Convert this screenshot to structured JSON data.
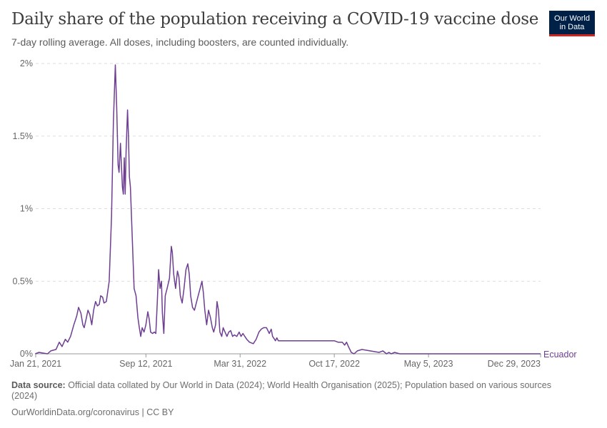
{
  "header": {
    "title": "Daily share of the population receiving a COVID-19 vaccine dose",
    "subtitle": "7-day rolling average. All doses, including boosters, are counted individually.",
    "logo_line1": "Our World",
    "logo_line2": "in Data"
  },
  "footer": {
    "source_label": "Data source:",
    "source_text": "Official data collated by Our World in Data (2024); World Health Organisation (2025); Population based on various sources (2024)",
    "url_text": "OurWorldinData.org/coronavirus | CC BY"
  },
  "colors": {
    "series": "#6d3e91",
    "grid": "#dddddd",
    "axis": "#999999",
    "text": "#666666"
  },
  "chart_data": {
    "type": "line",
    "title": "Daily share of the population receiving a COVID-19 vaccine dose",
    "subtitle": "7-day rolling average. All doses, including boosters, are counted individually.",
    "xlabel": "",
    "ylabel": "",
    "x_range": [
      "2021-01-21",
      "2023-12-29"
    ],
    "ylim": [
      0,
      2
    ],
    "y_ticks": [
      0,
      0.5,
      1,
      1.5,
      2
    ],
    "y_tick_labels": [
      "0%",
      "0.5%",
      "1%",
      "1.5%",
      "2%"
    ],
    "x_ticks": [
      "2021-01-21",
      "2021-09-12",
      "2022-03-31",
      "2022-10-17",
      "2023-05-05",
      "2023-12-29"
    ],
    "x_tick_labels": [
      "Jan 21, 2021",
      "Sep 12, 2021",
      "Mar 31, 2022",
      "Oct 17, 2022",
      "May 5, 2023",
      "Dec 29, 2023"
    ],
    "grid": "horizontal dashed",
    "legend": "end-of-line label",
    "series": [
      {
        "name": "Ecuador",
        "points": [
          [
            "2021-01-20",
            0.0
          ],
          [
            "2021-01-28",
            0.01
          ],
          [
            "2021-02-15",
            0.0
          ],
          [
            "2021-02-22",
            0.02
          ],
          [
            "2021-03-05",
            0.03
          ],
          [
            "2021-03-12",
            0.08
          ],
          [
            "2021-03-18",
            0.05
          ],
          [
            "2021-03-25",
            0.1
          ],
          [
            "2021-03-30",
            0.08
          ],
          [
            "2021-04-05",
            0.12
          ],
          [
            "2021-04-12",
            0.2
          ],
          [
            "2021-04-18",
            0.26
          ],
          [
            "2021-04-22",
            0.32
          ],
          [
            "2021-04-27",
            0.28
          ],
          [
            "2021-05-01",
            0.2
          ],
          [
            "2021-05-04",
            0.18
          ],
          [
            "2021-05-08",
            0.24
          ],
          [
            "2021-05-12",
            0.3
          ],
          [
            "2021-05-16",
            0.27
          ],
          [
            "2021-05-20",
            0.2
          ],
          [
            "2021-05-24",
            0.3
          ],
          [
            "2021-05-28",
            0.36
          ],
          [
            "2021-06-01",
            0.33
          ],
          [
            "2021-06-05",
            0.34
          ],
          [
            "2021-06-08",
            0.4
          ],
          [
            "2021-06-12",
            0.39
          ],
          [
            "2021-06-15",
            0.35
          ],
          [
            "2021-06-20",
            0.36
          ],
          [
            "2021-06-26",
            0.5
          ],
          [
            "2021-07-01",
            0.95
          ],
          [
            "2021-07-05",
            1.6
          ],
          [
            "2021-07-09",
            1.99
          ],
          [
            "2021-07-12",
            1.7
          ],
          [
            "2021-07-15",
            1.3
          ],
          [
            "2021-07-17",
            1.25
          ],
          [
            "2021-07-20",
            1.45
          ],
          [
            "2021-07-22",
            1.3
          ],
          [
            "2021-07-24",
            1.15
          ],
          [
            "2021-07-26",
            1.1
          ],
          [
            "2021-07-28",
            1.35
          ],
          [
            "2021-07-30",
            1.1
          ],
          [
            "2021-08-01",
            1.4
          ],
          [
            "2021-08-04",
            1.68
          ],
          [
            "2021-08-06",
            1.5
          ],
          [
            "2021-08-08",
            1.22
          ],
          [
            "2021-08-10",
            1.15
          ],
          [
            "2021-08-14",
            0.8
          ],
          [
            "2021-08-18",
            0.45
          ],
          [
            "2021-08-22",
            0.4
          ],
          [
            "2021-08-26",
            0.25
          ],
          [
            "2021-08-29",
            0.18
          ],
          [
            "2021-09-01",
            0.12
          ],
          [
            "2021-09-04",
            0.18
          ],
          [
            "2021-09-08",
            0.15
          ],
          [
            "2021-09-12",
            0.2
          ],
          [
            "2021-09-16",
            0.29
          ],
          [
            "2021-09-19",
            0.24
          ],
          [
            "2021-09-22",
            0.15
          ],
          [
            "2021-09-26",
            0.14
          ],
          [
            "2021-09-30",
            0.15
          ],
          [
            "2021-10-03",
            0.14
          ],
          [
            "2021-10-06",
            0.35
          ],
          [
            "2021-10-09",
            0.58
          ],
          [
            "2021-10-12",
            0.45
          ],
          [
            "2021-10-15",
            0.5
          ],
          [
            "2021-10-17",
            0.28
          ],
          [
            "2021-10-20",
            0.14
          ],
          [
            "2021-10-23",
            0.4
          ],
          [
            "2021-10-27",
            0.45
          ],
          [
            "2021-11-01",
            0.52
          ],
          [
            "2021-11-05",
            0.74
          ],
          [
            "2021-11-07",
            0.7
          ],
          [
            "2021-11-10",
            0.55
          ],
          [
            "2021-11-14",
            0.45
          ],
          [
            "2021-11-18",
            0.57
          ],
          [
            "2021-11-21",
            0.53
          ],
          [
            "2021-11-24",
            0.4
          ],
          [
            "2021-11-28",
            0.35
          ],
          [
            "2021-12-02",
            0.45
          ],
          [
            "2021-12-06",
            0.58
          ],
          [
            "2021-12-10",
            0.62
          ],
          [
            "2021-12-13",
            0.55
          ],
          [
            "2021-12-16",
            0.4
          ],
          [
            "2021-12-20",
            0.32
          ],
          [
            "2021-12-24",
            0.3
          ],
          [
            "2021-12-28",
            0.35
          ],
          [
            "2022-01-01",
            0.4
          ],
          [
            "2022-01-05",
            0.45
          ],
          [
            "2022-01-09",
            0.5
          ],
          [
            "2022-01-12",
            0.42
          ],
          [
            "2022-01-15",
            0.3
          ],
          [
            "2022-01-19",
            0.2
          ],
          [
            "2022-01-23",
            0.3
          ],
          [
            "2022-01-27",
            0.25
          ],
          [
            "2022-01-31",
            0.18
          ],
          [
            "2022-02-03",
            0.15
          ],
          [
            "2022-02-07",
            0.2
          ],
          [
            "2022-02-10",
            0.36
          ],
          [
            "2022-02-13",
            0.3
          ],
          [
            "2022-02-16",
            0.15
          ],
          [
            "2022-02-20",
            0.12
          ],
          [
            "2022-02-23",
            0.18
          ],
          [
            "2022-02-27",
            0.15
          ],
          [
            "2022-03-03",
            0.12
          ],
          [
            "2022-03-07",
            0.15
          ],
          [
            "2022-03-11",
            0.16
          ],
          [
            "2022-03-15",
            0.12
          ],
          [
            "2022-03-19",
            0.13
          ],
          [
            "2022-03-24",
            0.12
          ],
          [
            "2022-03-29",
            0.15
          ],
          [
            "2022-04-02",
            0.12
          ],
          [
            "2022-04-06",
            0.14
          ],
          [
            "2022-04-10",
            0.12
          ],
          [
            "2022-04-14",
            0.1
          ],
          [
            "2022-04-20",
            0.08
          ],
          [
            "2022-04-28",
            0.07
          ],
          [
            "2022-05-04",
            0.1
          ],
          [
            "2022-05-10",
            0.15
          ],
          [
            "2022-05-15",
            0.17
          ],
          [
            "2022-05-20",
            0.18
          ],
          [
            "2022-05-26",
            0.18
          ],
          [
            "2022-06-01",
            0.14
          ],
          [
            "2022-06-05",
            0.17
          ],
          [
            "2022-06-08",
            0.12
          ],
          [
            "2022-06-12",
            0.1
          ],
          [
            "2022-06-14",
            0.09
          ],
          [
            "2022-06-17",
            0.11
          ],
          [
            "2022-06-20",
            0.09
          ],
          [
            "2022-07-01",
            0.09
          ],
          [
            "2022-08-01",
            0.09
          ],
          [
            "2022-09-01",
            0.09
          ],
          [
            "2022-10-01",
            0.09
          ],
          [
            "2022-10-17",
            0.09
          ],
          [
            "2022-10-25",
            0.08
          ],
          [
            "2022-11-03",
            0.08
          ],
          [
            "2022-11-08",
            0.06
          ],
          [
            "2022-11-12",
            0.08
          ],
          [
            "2022-11-16",
            0.05
          ],
          [
            "2022-11-22",
            0.01
          ],
          [
            "2022-11-28",
            0.0
          ],
          [
            "2022-12-05",
            0.02
          ],
          [
            "2022-12-15",
            0.03
          ],
          [
            "2023-01-01",
            0.02
          ],
          [
            "2023-01-20",
            0.01
          ],
          [
            "2023-01-28",
            0.02
          ],
          [
            "2023-02-05",
            0.0
          ],
          [
            "2023-02-10",
            0.01
          ],
          [
            "2023-02-15",
            0.0
          ],
          [
            "2023-02-22",
            0.01
          ],
          [
            "2023-03-05",
            0.0
          ],
          [
            "2023-05-05",
            0.0
          ],
          [
            "2023-08-01",
            0.0
          ],
          [
            "2023-12-29",
            0.0
          ]
        ]
      }
    ]
  }
}
